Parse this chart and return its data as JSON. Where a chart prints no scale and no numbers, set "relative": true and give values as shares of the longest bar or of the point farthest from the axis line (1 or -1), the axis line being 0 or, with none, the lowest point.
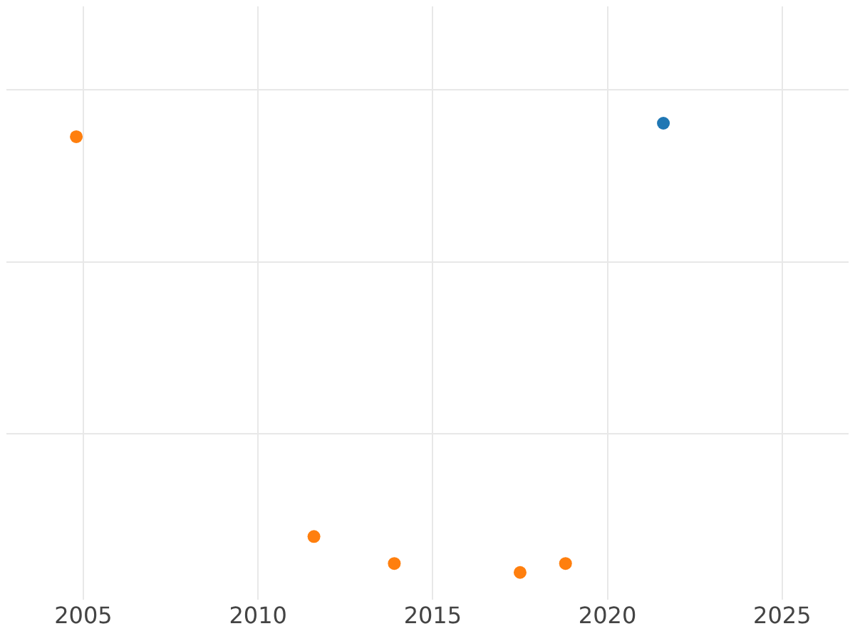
{
  "chart_data": {
    "type": "scatter",
    "relative": true,
    "grid": true,
    "legend": false,
    "marker": "circle",
    "xlim": [
      2002.8,
      2026.9
    ],
    "xticks": [
      2005,
      2010,
      2015,
      2020,
      2025
    ],
    "series": [
      {
        "color": "#1f77b4",
        "x": [
          2021.6
        ],
        "values": [
          1
        ]
      },
      {
        "color": "#ff7f0e",
        "x": [
          2004.8,
          2011.6,
          2013.9,
          2017.5,
          2018.8
        ],
        "values": [
          0.97,
          0.08,
          0.02,
          0,
          0.02
        ]
      }
    ]
  }
}
